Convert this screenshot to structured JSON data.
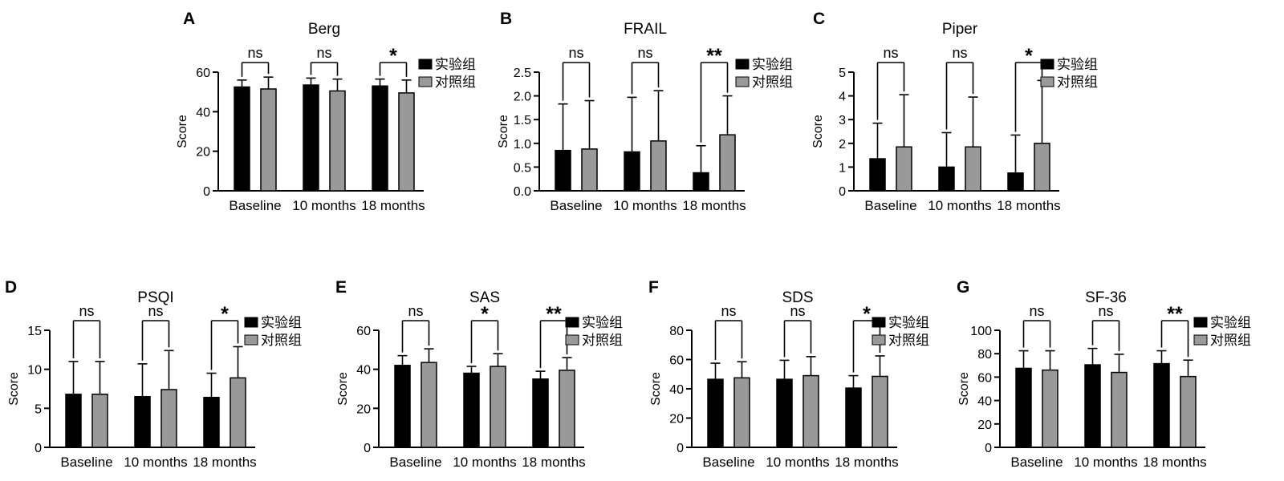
{
  "figure": {
    "legend": {
      "experimental": "实验组",
      "control": "对照组",
      "experimental_color": "#000000",
      "control_color": "#999999"
    },
    "categories": [
      "Baseline",
      "10 months",
      "18 months"
    ]
  },
  "chart_data": [
    {
      "panel": "A",
      "type": "bar",
      "title": "Berg",
      "ylabel": "Score",
      "xlabel": "",
      "ylim": [
        0,
        60
      ],
      "yticks": [
        0,
        20,
        40,
        60
      ],
      "grid": false,
      "categories": [
        "Baseline",
        "10 months",
        "18 months"
      ],
      "series": [
        {
          "name": "实验组",
          "values": [
            52.5,
            53.5,
            53
          ],
          "errors": [
            3.5,
            3.5,
            3.5
          ]
        },
        {
          "name": "对照组",
          "values": [
            51.5,
            50.5,
            49.5
          ],
          "errors": [
            6,
            6,
            6.5
          ]
        }
      ],
      "significance": [
        "ns",
        "ns",
        "*"
      ],
      "legend": "right"
    },
    {
      "panel": "B",
      "type": "bar",
      "title": "FRAIL",
      "ylabel": "Score",
      "xlabel": "",
      "ylim": [
        0,
        2.5
      ],
      "yticks": [
        "0.0",
        "0.5",
        "1.0",
        "1.5",
        "2.0",
        "2.5"
      ],
      "grid": false,
      "categories": [
        "Baseline",
        "10 months",
        "18 months"
      ],
      "series": [
        {
          "name": "实验组",
          "values": [
            0.85,
            0.82,
            0.38
          ],
          "errors": [
            0.98,
            1.15,
            0.57
          ]
        },
        {
          "name": "对照组",
          "values": [
            0.88,
            1.05,
            1.18
          ],
          "errors": [
            1.02,
            1.06,
            0.82
          ]
        }
      ],
      "significance": [
        "ns",
        "ns",
        "**"
      ],
      "legend": "right"
    },
    {
      "panel": "C",
      "type": "bar",
      "title": "Piper",
      "ylabel": "Score",
      "xlabel": "",
      "ylim": [
        0,
        5
      ],
      "yticks": [
        0,
        1,
        2,
        3,
        4,
        5
      ],
      "grid": false,
      "categories": [
        "Baseline",
        "10 months",
        "18 months"
      ],
      "series": [
        {
          "name": "实验组",
          "values": [
            1.35,
            1.0,
            0.75
          ],
          "errors": [
            1.5,
            1.45,
            1.6
          ]
        },
        {
          "name": "对照组",
          "values": [
            1.85,
            1.85,
            2.0
          ],
          "errors": [
            2.2,
            2.1,
            2.65
          ]
        }
      ],
      "significance": [
        "ns",
        "ns",
        "*"
      ],
      "legend": "right"
    },
    {
      "panel": "D",
      "type": "bar",
      "title": "PSQI",
      "ylabel": "Score",
      "xlabel": "",
      "ylim": [
        0,
        15
      ],
      "yticks": [
        0,
        5,
        10,
        15
      ],
      "grid": false,
      "categories": [
        "Baseline",
        "10 months",
        "18 months"
      ],
      "series": [
        {
          "name": "实验组",
          "values": [
            6.8,
            6.5,
            6.4
          ],
          "errors": [
            4.2,
            4.2,
            3.1
          ]
        },
        {
          "name": "对照组",
          "values": [
            6.8,
            7.4,
            8.9
          ],
          "errors": [
            4.2,
            5.0,
            4.0
          ]
        }
      ],
      "significance": [
        "ns",
        "ns",
        "*"
      ],
      "legend": "right"
    },
    {
      "panel": "E",
      "type": "bar",
      "title": "SAS",
      "ylabel": "Score",
      "xlabel": "",
      "ylim": [
        0,
        60
      ],
      "yticks": [
        0,
        20,
        40,
        60
      ],
      "grid": false,
      "categories": [
        "Baseline",
        "10 months",
        "18 months"
      ],
      "series": [
        {
          "name": "实验组",
          "values": [
            42,
            38,
            35
          ],
          "errors": [
            5,
            3.5,
            4
          ]
        },
        {
          "name": "对照组",
          "values": [
            43.5,
            41.5,
            39.5
          ],
          "errors": [
            7,
            6.5,
            6.5
          ]
        }
      ],
      "significance": [
        "ns",
        "*",
        "**"
      ],
      "legend": "right"
    },
    {
      "panel": "F",
      "type": "bar",
      "title": "SDS",
      "ylabel": "Score",
      "xlabel": "",
      "ylim": [
        0,
        80
      ],
      "yticks": [
        0,
        20,
        40,
        60,
        80
      ],
      "grid": false,
      "categories": [
        "Baseline",
        "10 months",
        "18 months"
      ],
      "series": [
        {
          "name": "实验组",
          "values": [
            46.5,
            46.5,
            40.5
          ],
          "errors": [
            11,
            13,
            8.5
          ]
        },
        {
          "name": "对照组",
          "values": [
            47.5,
            49,
            48.5
          ],
          "errors": [
            11,
            13,
            14
          ]
        }
      ],
      "significance": [
        "ns",
        "ns",
        "*"
      ],
      "legend": "right"
    },
    {
      "panel": "G",
      "type": "bar",
      "title": "SF-36",
      "ylabel": "Score",
      "xlabel": "",
      "ylim": [
        0,
        100
      ],
      "yticks": [
        0,
        20,
        40,
        60,
        80,
        100
      ],
      "grid": false,
      "categories": [
        "Baseline",
        "10 months",
        "18 months"
      ],
      "series": [
        {
          "name": "实验组",
          "values": [
            67.5,
            70.5,
            71.5
          ],
          "errors": [
            15,
            14,
            11
          ]
        },
        {
          "name": "对照组",
          "values": [
            66,
            64,
            60.5
          ],
          "errors": [
            16.5,
            15.5,
            14
          ]
        }
      ],
      "significance": [
        "ns",
        "ns",
        "**"
      ],
      "legend": "right"
    }
  ]
}
